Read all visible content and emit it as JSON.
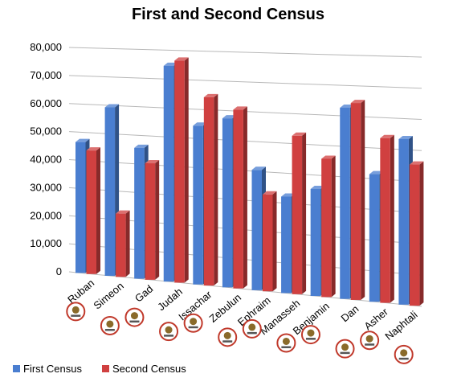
{
  "chart_data": {
    "type": "bar",
    "title": "First and Second Census",
    "categories": [
      "Ruban",
      "Simeon",
      "Gad",
      "Judah",
      "Issachar",
      "Zebulun",
      "Ephraim",
      "Manasseh",
      "Benjamin",
      "Dan",
      "Asher",
      "Naphtali"
    ],
    "series": [
      {
        "name": "First Census",
        "color": "#4a7ed0",
        "values": [
          46500,
          59300,
          45650,
          74600,
          54400,
          57400,
          40500,
          32200,
          35400,
          62700,
          41500,
          53400
        ]
      },
      {
        "name": "Second Census",
        "color": "#d04040",
        "values": [
          43730,
          22200,
          40500,
          76500,
          64300,
          60500,
          32500,
          52700,
          45600,
          64400,
          53400,
          45400
        ]
      }
    ],
    "yticks": [
      "0",
      "10,000",
      "20,000",
      "30,000",
      "40,000",
      "50,000",
      "60,000",
      "70,000",
      "80,000"
    ],
    "ylim": [
      0,
      80000
    ],
    "grid": true,
    "legend_position": "bottom-left",
    "emblem_icons": [
      "tribe-emblem-reuben",
      "tribe-emblem-simeon",
      "tribe-emblem-gad",
      "tribe-emblem-judah",
      "tribe-emblem-issachar",
      "tribe-emblem-zebulun",
      "tribe-emblem-ephraim",
      "tribe-emblem-manasseh",
      "tribe-emblem-benjamin",
      "tribe-emblem-dan",
      "tribe-emblem-asher",
      "tribe-emblem-naphtali"
    ]
  }
}
